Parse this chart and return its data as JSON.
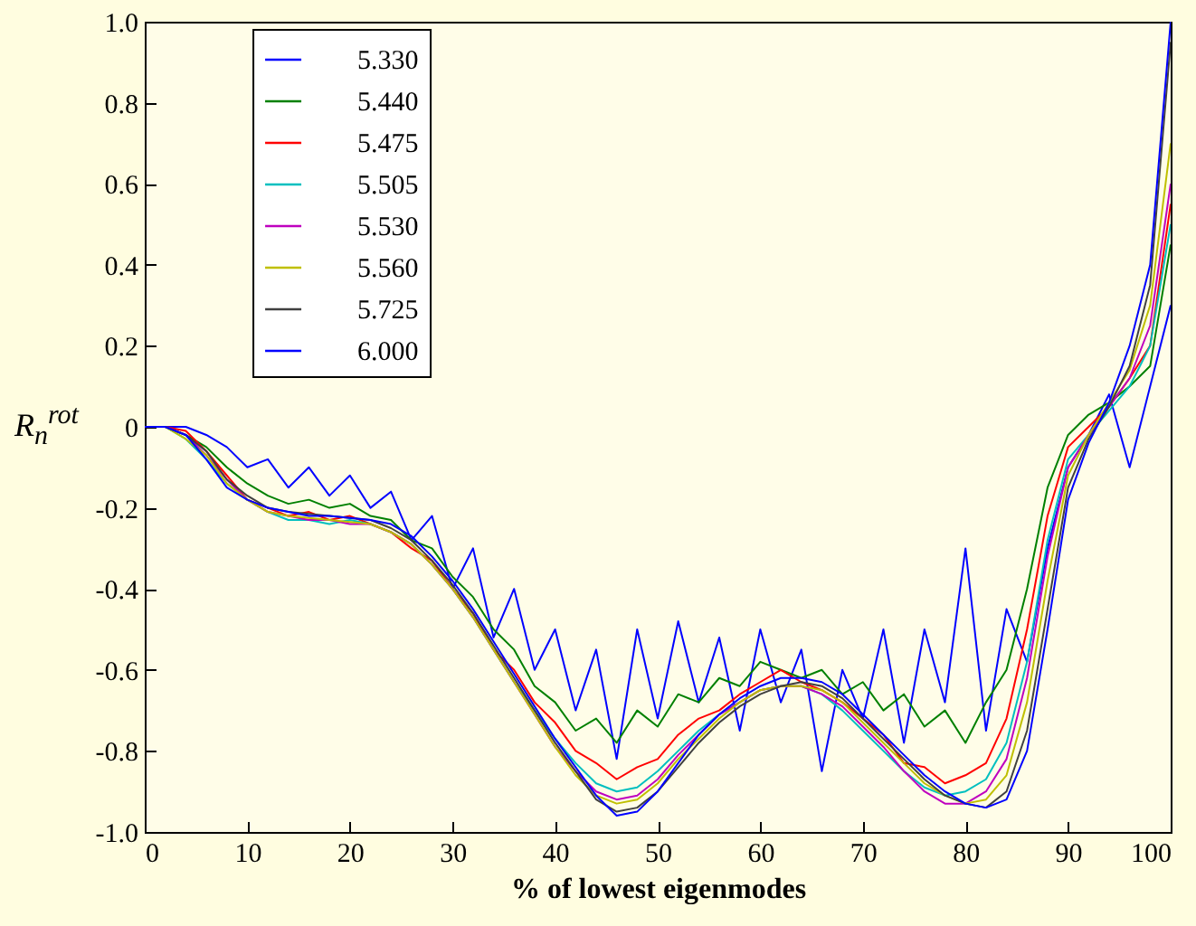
{
  "chart_data": {
    "type": "line",
    "xlabel": "% of lowest eigenmodes",
    "ylabel": "R$_{n}$$^{rot}$",
    "x": [
      0,
      2,
      4,
      6,
      8,
      10,
      12,
      14,
      16,
      18,
      20,
      22,
      24,
      26,
      28,
      30,
      32,
      34,
      36,
      38,
      40,
      42,
      44,
      46,
      48,
      50,
      52,
      54,
      56,
      58,
      60,
      62,
      64,
      66,
      68,
      70,
      72,
      74,
      76,
      78,
      80,
      82,
      84,
      86,
      88,
      90,
      92,
      94,
      96,
      98,
      100
    ],
    "series": [
      {
        "name": "5.330",
        "color": "#0000ff",
        "values": [
          0,
          0,
          0,
          -0.02,
          -0.05,
          -0.1,
          -0.08,
          -0.15,
          -0.1,
          -0.17,
          -0.12,
          -0.2,
          -0.16,
          -0.28,
          -0.22,
          -0.4,
          -0.3,
          -0.52,
          -0.4,
          -0.6,
          -0.5,
          -0.7,
          -0.55,
          -0.82,
          -0.5,
          -0.72,
          -0.48,
          -0.68,
          -0.52,
          -0.75,
          -0.5,
          -0.68,
          -0.55,
          -0.85,
          -0.6,
          -0.72,
          -0.5,
          -0.78,
          -0.5,
          -0.68,
          -0.3,
          -0.75,
          -0.45,
          -0.58,
          -0.3,
          -0.1,
          -0.02,
          0.08,
          -0.1,
          0.1,
          0.3
        ]
      },
      {
        "name": "5.440",
        "color": "#008000",
        "values": [
          0,
          0,
          -0.02,
          -0.05,
          -0.1,
          -0.14,
          -0.17,
          -0.19,
          -0.18,
          -0.2,
          -0.19,
          -0.22,
          -0.23,
          -0.28,
          -0.3,
          -0.37,
          -0.42,
          -0.5,
          -0.55,
          -0.64,
          -0.68,
          -0.75,
          -0.72,
          -0.78,
          -0.7,
          -0.74,
          -0.66,
          -0.68,
          -0.62,
          -0.64,
          -0.58,
          -0.6,
          -0.62,
          -0.6,
          -0.66,
          -0.63,
          -0.7,
          -0.66,
          -0.74,
          -0.7,
          -0.78,
          -0.68,
          -0.6,
          -0.4,
          -0.15,
          -0.02,
          0.03,
          0.06,
          0.1,
          0.15,
          0.45
        ]
      },
      {
        "name": "5.475",
        "color": "#ff0000",
        "values": [
          0,
          0,
          -0.01,
          -0.06,
          -0.12,
          -0.18,
          -0.2,
          -0.22,
          -0.21,
          -0.23,
          -0.22,
          -0.24,
          -0.26,
          -0.3,
          -0.33,
          -0.4,
          -0.46,
          -0.55,
          -0.6,
          -0.68,
          -0.73,
          -0.8,
          -0.83,
          -0.87,
          -0.84,
          -0.82,
          -0.76,
          -0.72,
          -0.7,
          -0.66,
          -0.63,
          -0.6,
          -0.63,
          -0.65,
          -0.68,
          -0.72,
          -0.76,
          -0.83,
          -0.84,
          -0.88,
          -0.86,
          -0.83,
          -0.72,
          -0.5,
          -0.22,
          -0.05,
          0,
          0.05,
          0.12,
          0.2,
          0.55
        ]
      },
      {
        "name": "5.505",
        "color": "#00bfbf",
        "values": [
          0,
          0,
          -0.03,
          -0.08,
          -0.14,
          -0.18,
          -0.21,
          -0.23,
          -0.23,
          -0.24,
          -0.23,
          -0.24,
          -0.26,
          -0.29,
          -0.34,
          -0.4,
          -0.47,
          -0.55,
          -0.63,
          -0.7,
          -0.77,
          -0.83,
          -0.88,
          -0.9,
          -0.89,
          -0.85,
          -0.8,
          -0.75,
          -0.71,
          -0.68,
          -0.65,
          -0.64,
          -0.64,
          -0.66,
          -0.7,
          -0.75,
          -0.8,
          -0.85,
          -0.89,
          -0.91,
          -0.9,
          -0.87,
          -0.78,
          -0.58,
          -0.28,
          -0.08,
          -0.02,
          0.04,
          0.1,
          0.2,
          0.5
        ]
      },
      {
        "name": "5.530",
        "color": "#bf00bf",
        "values": [
          0,
          0,
          -0.02,
          -0.07,
          -0.13,
          -0.18,
          -0.21,
          -0.22,
          -0.23,
          -0.23,
          -0.24,
          -0.24,
          -0.26,
          -0.29,
          -0.34,
          -0.4,
          -0.47,
          -0.55,
          -0.63,
          -0.71,
          -0.79,
          -0.85,
          -0.9,
          -0.92,
          -0.91,
          -0.87,
          -0.81,
          -0.76,
          -0.71,
          -0.68,
          -0.65,
          -0.64,
          -0.64,
          -0.66,
          -0.69,
          -0.74,
          -0.79,
          -0.85,
          -0.9,
          -0.93,
          -0.93,
          -0.9,
          -0.82,
          -0.62,
          -0.32,
          -0.1,
          -0.02,
          0.05,
          0.12,
          0.25,
          0.6
        ]
      },
      {
        "name": "5.560",
        "color": "#bfbf00",
        "values": [
          0,
          0,
          -0.03,
          -0.07,
          -0.14,
          -0.18,
          -0.21,
          -0.22,
          -0.225,
          -0.23,
          -0.235,
          -0.24,
          -0.26,
          -0.29,
          -0.34,
          -0.4,
          -0.47,
          -0.55,
          -0.63,
          -0.71,
          -0.79,
          -0.86,
          -0.91,
          -0.93,
          -0.92,
          -0.88,
          -0.82,
          -0.77,
          -0.72,
          -0.68,
          -0.65,
          -0.64,
          -0.64,
          -0.65,
          -0.68,
          -0.73,
          -0.78,
          -0.83,
          -0.88,
          -0.91,
          -0.93,
          -0.92,
          -0.86,
          -0.68,
          -0.38,
          -0.12,
          -0.02,
          0.06,
          0.14,
          0.3,
          0.7
        ]
      },
      {
        "name": "5.725",
        "color": "#404040",
        "values": [
          0,
          0,
          -0.02,
          -0.06,
          -0.13,
          -0.17,
          -0.2,
          -0.21,
          -0.215,
          -0.22,
          -0.225,
          -0.23,
          -0.25,
          -0.28,
          -0.33,
          -0.39,
          -0.46,
          -0.54,
          -0.62,
          -0.7,
          -0.78,
          -0.85,
          -0.92,
          -0.95,
          -0.94,
          -0.9,
          -0.84,
          -0.78,
          -0.73,
          -0.69,
          -0.66,
          -0.64,
          -0.63,
          -0.64,
          -0.67,
          -0.72,
          -0.77,
          -0.82,
          -0.87,
          -0.91,
          -0.93,
          -0.94,
          -0.9,
          -0.75,
          -0.45,
          -0.15,
          -0.03,
          0.05,
          0.15,
          0.35,
          0.95
        ]
      },
      {
        "name": "6.000",
        "color": "#0000ff",
        "values": [
          0,
          0,
          -0.02,
          -0.08,
          -0.15,
          -0.18,
          -0.2,
          -0.21,
          -0.22,
          -0.22,
          -0.225,
          -0.23,
          -0.24,
          -0.27,
          -0.32,
          -0.38,
          -0.45,
          -0.53,
          -0.61,
          -0.69,
          -0.77,
          -0.84,
          -0.91,
          -0.96,
          -0.95,
          -0.9,
          -0.83,
          -0.76,
          -0.71,
          -0.67,
          -0.64,
          -0.62,
          -0.62,
          -0.63,
          -0.66,
          -0.71,
          -0.76,
          -0.81,
          -0.86,
          -0.9,
          -0.93,
          -0.94,
          -0.92,
          -0.8,
          -0.5,
          -0.18,
          -0.04,
          0.06,
          0.2,
          0.4,
          1.0
        ]
      }
    ],
    "xlim": [
      0,
      100
    ],
    "xticks": [
      0,
      10,
      20,
      30,
      40,
      50,
      60,
      70,
      80,
      90,
      100
    ],
    "ylim": [
      -1,
      1
    ],
    "yticks": [
      {
        "value": -1,
        "label": "-1.0"
      },
      -0.8,
      -0.6,
      -0.4,
      -0.2,
      0,
      0.2,
      0.4,
      0.6,
      0.8,
      {
        "value": 1,
        "label": "1.0"
      }
    ],
    "legend": "top left",
    "grid": false
  }
}
